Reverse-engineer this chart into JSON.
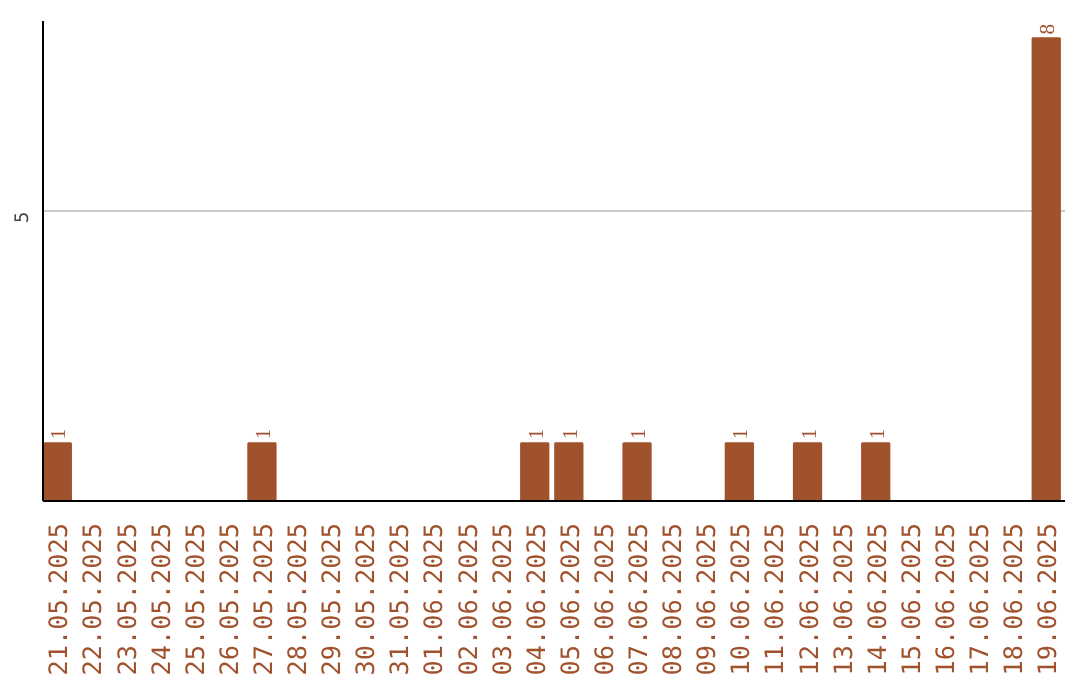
{
  "chart_data": {
    "type": "bar",
    "categories": [
      "21.05.2025",
      "22.05.2025",
      "23.05.2025",
      "24.05.2025",
      "25.05.2025",
      "26.05.2025",
      "27.05.2025",
      "28.05.2025",
      "29.05.2025",
      "30.05.2025",
      "31.05.2025",
      "01.06.2025",
      "02.06.2025",
      "03.06.2025",
      "04.06.2025",
      "05.06.2025",
      "06.06.2025",
      "07.06.2025",
      "08.06.2025",
      "09.06.2025",
      "10.06.2025",
      "11.06.2025",
      "12.06.2025",
      "13.06.2025",
      "14.06.2025",
      "15.06.2025",
      "16.06.2025",
      "17.06.2025",
      "18.06.2025",
      "19.06.2025"
    ],
    "values": [
      1,
      0,
      0,
      0,
      0,
      0,
      1,
      0,
      0,
      0,
      0,
      0,
      0,
      0,
      1,
      1,
      0,
      1,
      0,
      0,
      1,
      0,
      1,
      0,
      1,
      0,
      0,
      0,
      0,
      8
    ],
    "value_labels": [
      "1",
      null,
      null,
      null,
      null,
      null,
      "1",
      null,
      null,
      null,
      null,
      null,
      null,
      null,
      "1",
      "1",
      null,
      "1",
      null,
      null,
      "1",
      null,
      "1",
      null,
      "1",
      null,
      null,
      null,
      null,
      "8"
    ],
    "color": "#a0522d",
    "ylim": [
      0,
      8.3
    ],
    "yticks": [
      5
    ],
    "grid": "y"
  }
}
